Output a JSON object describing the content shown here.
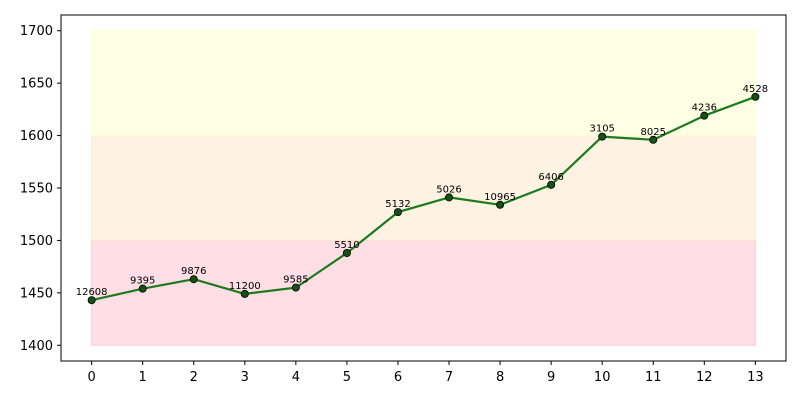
{
  "chart_data": {
    "type": "line",
    "title": "",
    "xlabel": "",
    "ylabel": "",
    "x": [
      0,
      1,
      2,
      3,
      4,
      5,
      6,
      7,
      8,
      9,
      10,
      11,
      12,
      13
    ],
    "xlim": [
      -0.6,
      13.6
    ],
    "ylim": [
      1385,
      1715
    ],
    "yticks": [
      1400,
      1450,
      1500,
      1550,
      1600,
      1650,
      1700
    ],
    "grid": false,
    "series": [
      {
        "values": [
          1443,
          1454,
          1463,
          1449,
          1455,
          1488,
          1527,
          1541,
          1534,
          1553,
          1599,
          1596,
          1619,
          1637
        ],
        "point_labels": [
          "12608",
          "9395",
          "9876",
          "11200",
          "9585",
          "5510",
          "5132",
          "5026",
          "10965",
          "6406",
          "3105",
          "8025",
          "4236",
          "4528"
        ],
        "color": "#1e7a1e",
        "marker_color": "#145214"
      }
    ],
    "bands": [
      {
        "from": 1400,
        "to": 1500,
        "x_from": 0,
        "x_to": 13,
        "color": "#ffc0cb"
      },
      {
        "from": 1500,
        "to": 1600,
        "x_from": 0,
        "x_to": 13,
        "color": "#fde8c8"
      },
      {
        "from": 1600,
        "to": 1700,
        "x_from": 0,
        "x_to": 13,
        "color": "#ffffcc"
      }
    ]
  }
}
